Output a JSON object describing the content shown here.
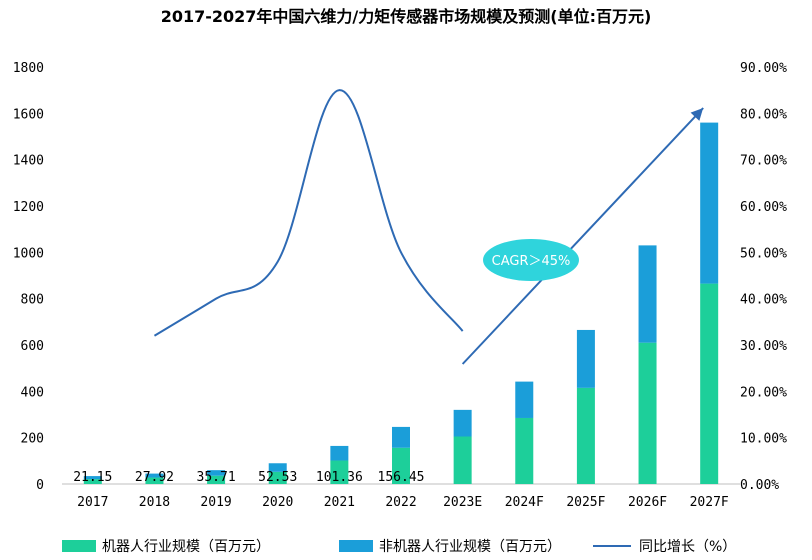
{
  "chart_data": {
    "type": "bar",
    "stacked": true,
    "title": "2017-2027年中国六维力/力矩传感器市场规模及预测(单位:百万元)",
    "categories": [
      "2017",
      "2018",
      "2019",
      "2020",
      "2021",
      "2022",
      "2023E",
      "2024F",
      "2025F",
      "2026F",
      "2027F"
    ],
    "series": [
      {
        "name": "机器人行业规模（百万元）",
        "color": "#1dcf9a",
        "values": [
          21.15,
          27.92,
          35.71,
          52.53,
          101.36,
          156.45,
          205,
          285,
          415,
          610,
          865
        ]
      },
      {
        "name": "非机器人行业规模（百万元）",
        "color": "#1b9ed9",
        "values": [
          13,
          17,
          24,
          37,
          63,
          90,
          115,
          157,
          250,
          420,
          695
        ]
      },
      {
        "name": "同比增长（%）",
        "color": "#2e6ab4",
        "axis": "right",
        "type": "line",
        "values": [
          null,
          32,
          40,
          48,
          85,
          50,
          33,
          null,
          null,
          null,
          null
        ]
      }
    ],
    "data_labels": [
      "21.15",
      "27.92",
      "35.71",
      "52.53",
      "101.36",
      "156.45"
    ],
    "y_left": {
      "range": [
        0,
        1800
      ],
      "ticks": [
        "0",
        "200",
        "400",
        "600",
        "800",
        "1000",
        "1200",
        "1400",
        "1600",
        "1800"
      ]
    },
    "y_right": {
      "range": [
        0,
        90
      ],
      "ticks": [
        "0.00%",
        "10.00%",
        "20.00%",
        "30.00%",
        "40.00%",
        "50.00%",
        "60.00%",
        "70.00%",
        "80.00%",
        "90.00%"
      ]
    },
    "annotation": {
      "text": "CAGR＞45%",
      "color": "#2fd4dc"
    },
    "legend_position": "bottom",
    "grid": false
  }
}
